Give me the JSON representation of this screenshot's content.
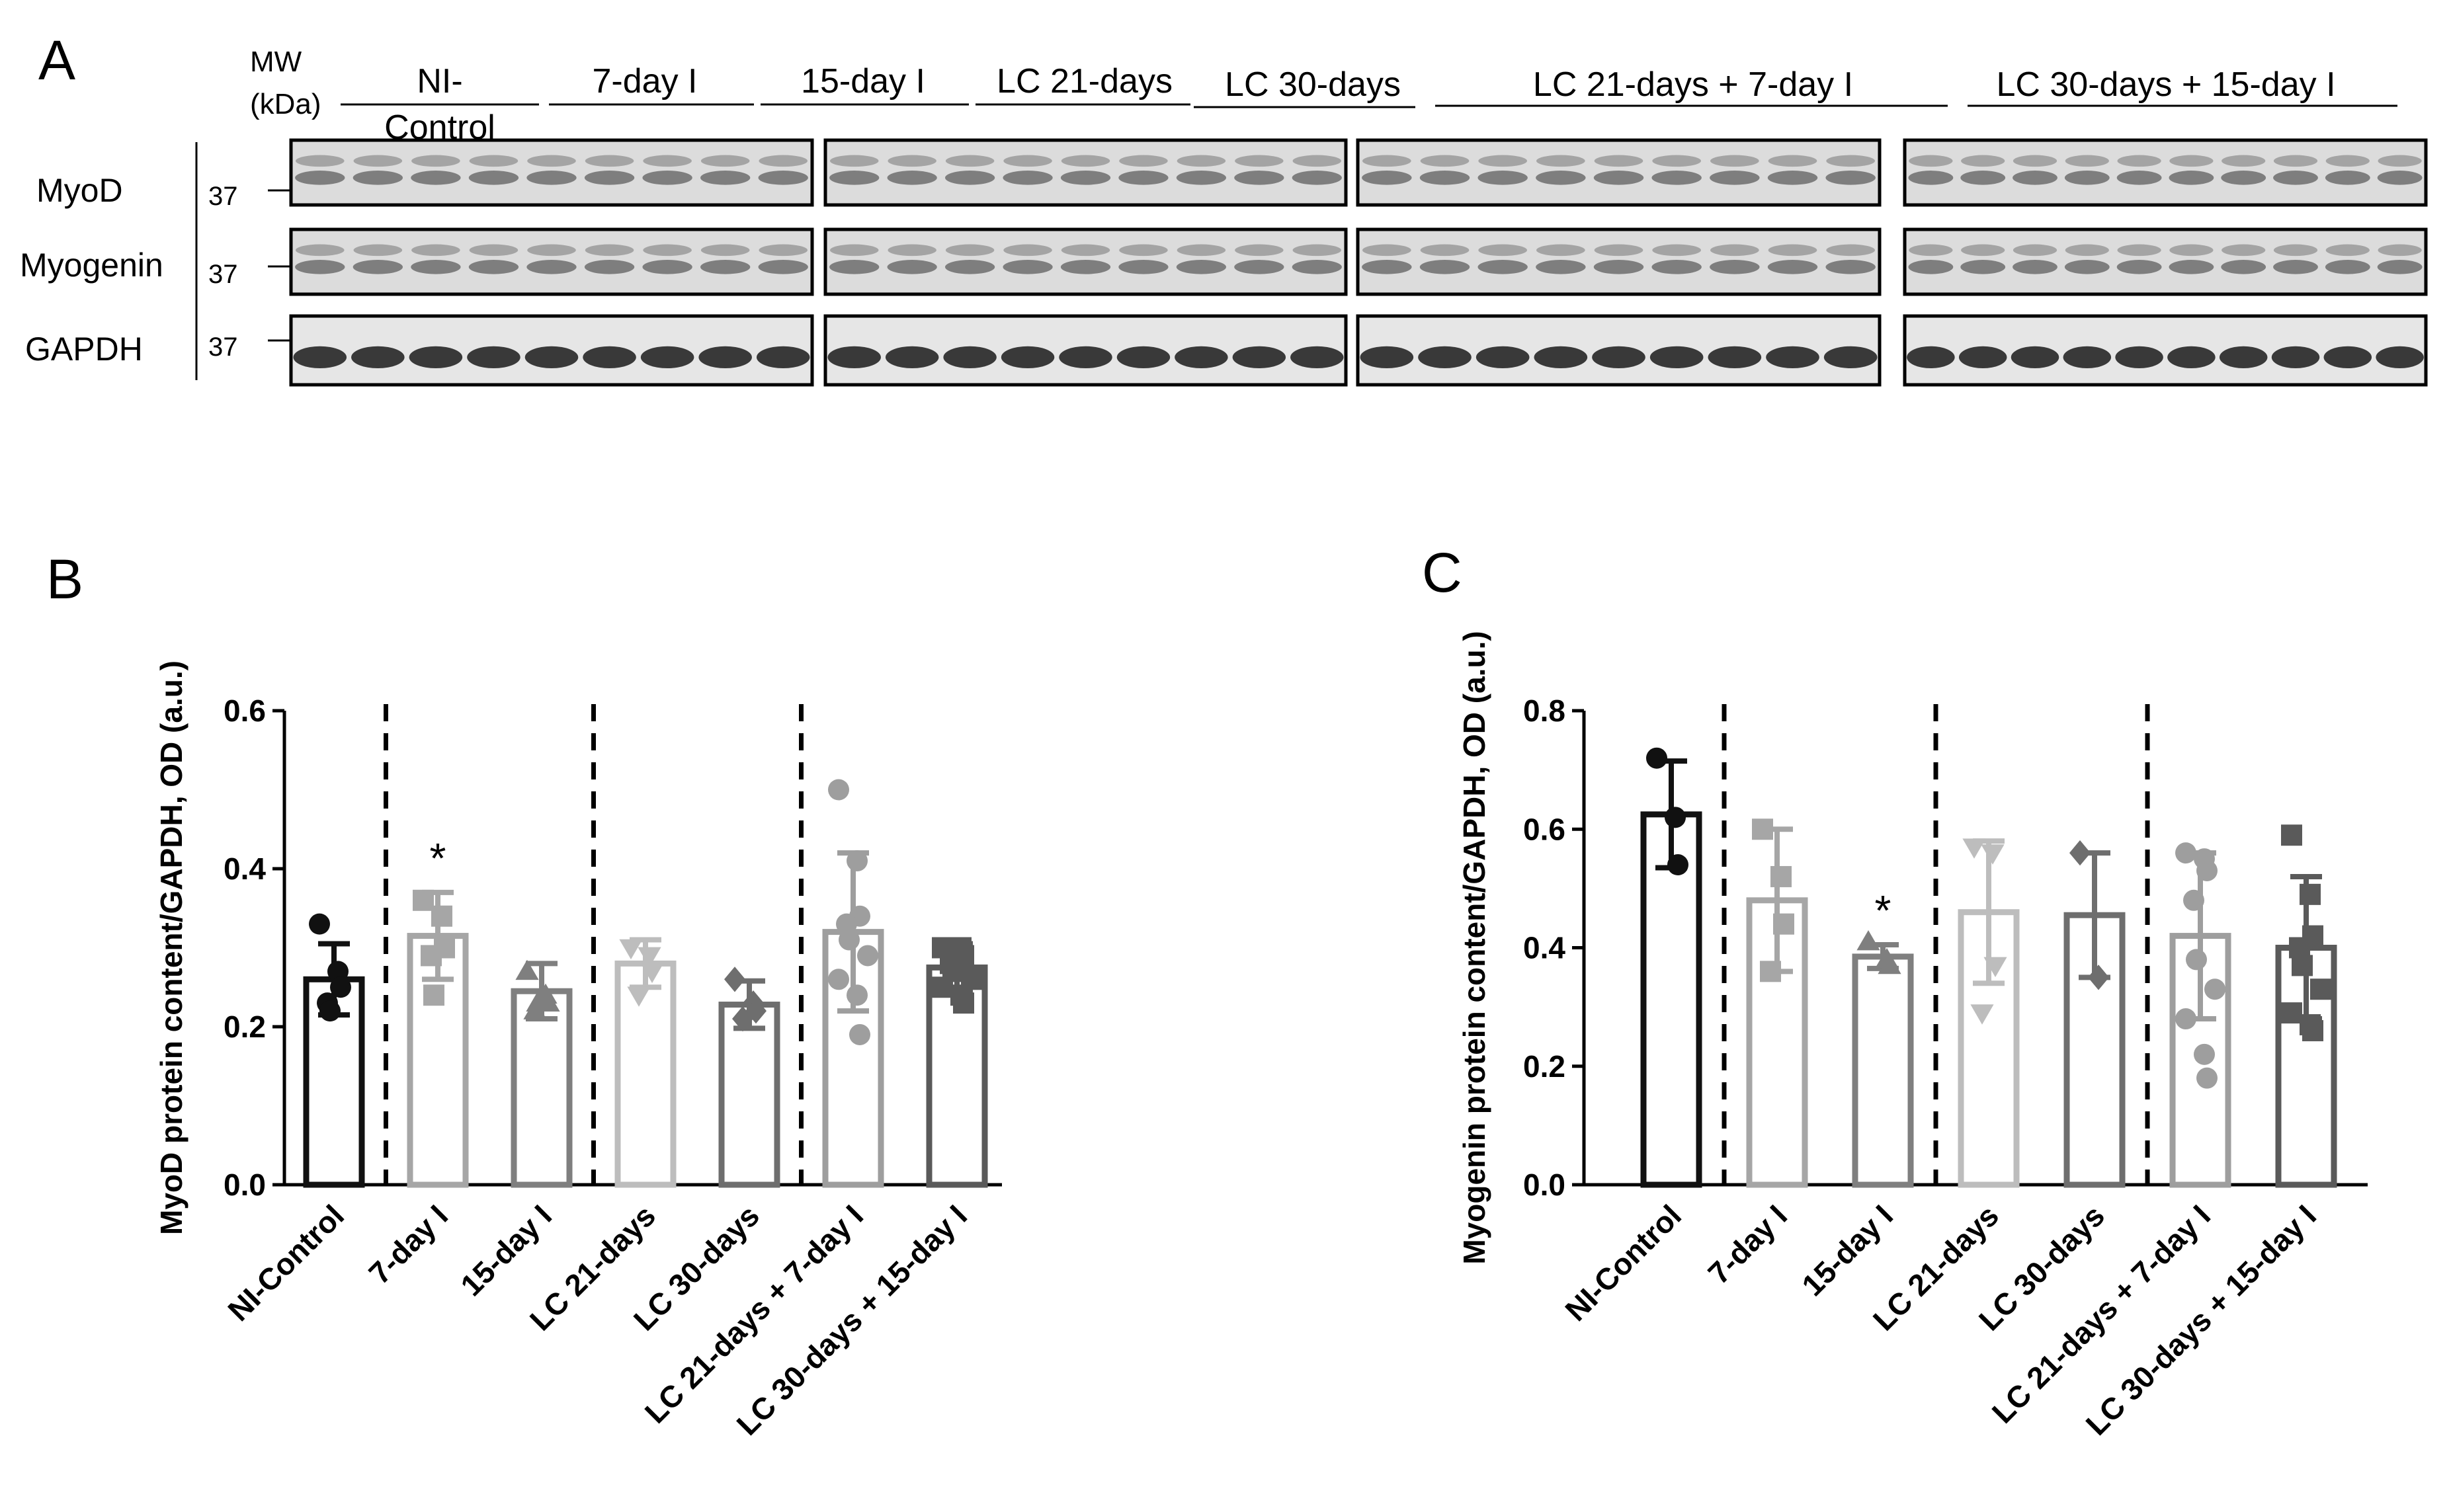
{
  "panel_letters": {
    "a": "A",
    "b": "B",
    "c": "C"
  },
  "blot": {
    "mw_label": "MW",
    "kda_label": "(kDa)",
    "group_labels": [
      "NI-Control",
      "7-day I",
      "15-day I",
      "LC 21-days",
      "LC 30-days",
      "LC 21-days + 7-day I",
      "LC 30-days + 15-day I"
    ],
    "ni_control_line1": "NI-",
    "ni_control_line2": "Control",
    "rows": [
      {
        "protein": "MyoD",
        "mw": "37"
      },
      {
        "protein": "Myogenin",
        "mw": "37"
      },
      {
        "protein": "GAPDH",
        "mw": "37"
      }
    ]
  },
  "colors": {
    "ni_control": "#111111",
    "i7": "#a6a6a6",
    "i15": "#7f7f7f",
    "lc21": "#bdbdbd",
    "lc30": "#6e6e6e",
    "lc21_7": "#9e9e9e",
    "lc30_15": "#5a5a5a"
  },
  "chart_data": [
    {
      "type": "bar",
      "panel": "B",
      "ylabel": "MyoD protein content/GAPDH, OD (a.u.)",
      "ylim": [
        0,
        0.6
      ],
      "yticks": [
        "0.0",
        "0.2",
        "0.4",
        "0.6"
      ],
      "categories": [
        "NI-Control",
        "7-day I",
        "15-day I",
        "LC 21-days",
        "LC 30-days",
        "LC 21-days + 7-day I",
        "LC 30-days + 15-day I"
      ],
      "values": [
        0.26,
        0.315,
        0.245,
        0.28,
        0.228,
        0.32,
        0.275
      ],
      "sd": [
        0.045,
        0.055,
        0.035,
        0.03,
        0.03,
        0.1,
        0.03
      ],
      "significance": [
        "",
        "*",
        "",
        "",
        "",
        "",
        ""
      ],
      "points": [
        [
          0.33,
          0.27,
          0.25,
          0.23,
          0.22
        ],
        [
          0.36,
          0.34,
          0.3,
          0.29,
          0.24
        ],
        [
          0.27,
          0.24,
          0.23,
          0.22,
          0.23
        ],
        [
          0.3,
          0.29,
          0.27,
          0.24
        ],
        [
          0.26,
          0.23,
          0.22,
          0.21
        ],
        [
          0.5,
          0.41,
          0.34,
          0.33,
          0.31,
          0.29,
          0.26,
          0.24,
          0.19
        ],
        [
          0.3,
          0.3,
          0.29,
          0.28,
          0.27,
          0.26,
          0.25,
          0.24,
          0.23
        ]
      ],
      "separators_after": [
        0,
        2,
        4
      ]
    },
    {
      "type": "bar",
      "panel": "C",
      "ylabel": "Myogenin protein content/GAPDH, OD (a.u.)",
      "ylim": [
        0,
        0.8
      ],
      "yticks": [
        "0.0",
        "0.2",
        "0.4",
        "0.6",
        "0.8"
      ],
      "categories": [
        "NI-Control",
        "7-day I",
        "15-day I",
        "LC 21-days",
        "LC 30-days",
        "LC 21-days + 7-day I",
        "LC 30-days + 15-day I"
      ],
      "values": [
        0.625,
        0.48,
        0.385,
        0.46,
        0.455,
        0.42,
        0.4
      ],
      "sd": [
        0.09,
        0.12,
        0.02,
        0.12,
        0.105,
        0.14,
        0.12
      ],
      "significance": [
        "",
        "",
        "*",
        "",
        "",
        "",
        ""
      ],
      "points": [
        [
          0.72,
          0.62,
          0.54
        ],
        [
          0.6,
          0.52,
          0.44,
          0.36
        ],
        [
          0.41,
          0.38,
          0.37
        ],
        [
          0.57,
          0.56,
          0.37,
          0.29
        ],
        [
          0.56,
          0.35
        ],
        [
          0.56,
          0.55,
          0.53,
          0.48,
          0.38,
          0.33,
          0.28,
          0.22,
          0.18
        ],
        [
          0.59,
          0.49,
          0.42,
          0.4,
          0.37,
          0.33,
          0.29,
          0.27,
          0.26
        ]
      ],
      "separators_after": [
        0,
        2,
        4
      ]
    }
  ]
}
